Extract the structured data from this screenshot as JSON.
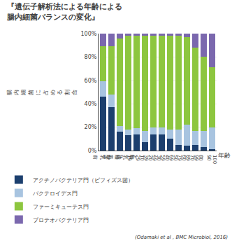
{
  "chart_data": {
    "type": "bar",
    "stacked": true,
    "title": "『遺伝子解析法による年齢による\n腸内細菌バランスの変化』",
    "ylabel": "腸内細菌に占める割合",
    "xlabel": "年齢",
    "annotations": [
      {
        "text": "(Odamaki et al , BMC Microbiol, 2016)"
      }
    ],
    "categories": [
      "離\n乳\n前",
      "離\n乳\n中",
      "離\n乳\n後\n～\n3",
      "4\n～\n9",
      "10\n～\n19",
      "20\n～\n29",
      "30\n～\n39",
      "40\n～\n49",
      "50\n～\n59",
      "60\n～\n69",
      "70\n～\n79",
      "80\n～\n89",
      "90\n～\n99",
      "100\n～"
    ],
    "series": [
      {
        "name": "アクチノバクテリア門（ビフィズス菌）",
        "color": "#1c3f6e",
        "values": [
          46,
          37,
          16,
          13,
          14,
          7,
          14,
          14,
          10,
          5,
          4,
          5,
          3,
          1
        ]
      },
      {
        "name": "バクテロイデス門",
        "color": "#a8c4e0",
        "values": [
          13,
          11,
          5,
          5,
          5,
          10,
          6,
          6,
          8,
          13,
          18,
          12,
          14,
          19
        ]
      },
      {
        "name": "ファーミキューテス門",
        "color": "#8dc63f",
        "values": [
          30,
          41,
          75,
          80,
          79,
          81,
          78,
          78,
          80,
          80,
          75,
          71,
          63,
          51
        ]
      },
      {
        "name": "プロテオバクテリア門",
        "color": "#7b68ae",
        "values": [
          11,
          11,
          4,
          2,
          2,
          2,
          2,
          2,
          2,
          2,
          3,
          12,
          20,
          29
        ]
      }
    ],
    "ylim": [
      0,
      100
    ],
    "yticks": [
      {
        "value": 0,
        "label": "0%"
      },
      {
        "value": 20,
        "label": "20%"
      },
      {
        "value": 40,
        "label": "40%"
      },
      {
        "value": 60,
        "label": "60%"
      },
      {
        "value": 80,
        "label": "80%"
      },
      {
        "value": 100,
        "label": "100%"
      }
    ],
    "grid": true,
    "legend": "bottom"
  }
}
